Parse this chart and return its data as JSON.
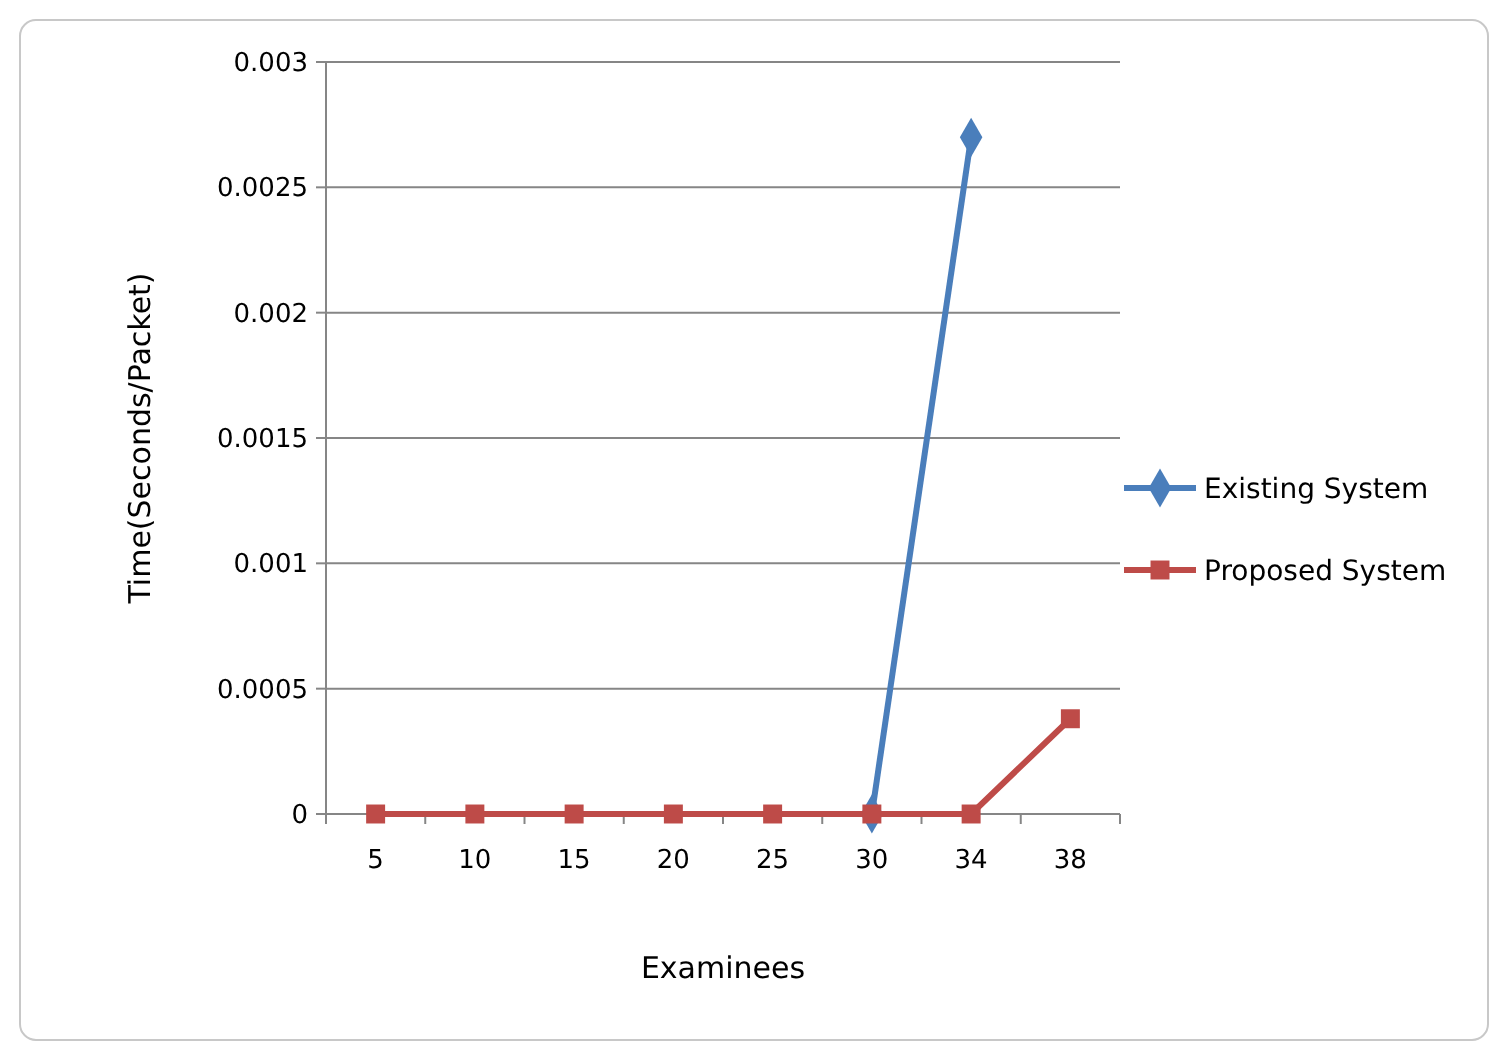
{
  "chart_data": {
    "type": "line",
    "xlabel": "Examinees",
    "ylabel": "Time(Seconds/Packet)",
    "categories": [
      "5",
      "10",
      "15",
      "20",
      "25",
      "30",
      "34",
      "38"
    ],
    "series": [
      {
        "name": "Existing System",
        "color": "#4a7ebb",
        "marker": "diamond",
        "values": [
          null,
          null,
          null,
          null,
          null,
          0,
          0.0027,
          null
        ]
      },
      {
        "name": "Proposed System",
        "color": "#be4b48",
        "marker": "square",
        "values": [
          0,
          0,
          0,
          0,
          0,
          0,
          0,
          0.00038
        ]
      }
    ],
    "ylim": [
      0,
      0.003
    ],
    "yticks": [
      0,
      0.0005,
      0.001,
      0.0015,
      0.002,
      0.0025,
      0.003
    ],
    "grid": "y",
    "legend": "right"
  }
}
